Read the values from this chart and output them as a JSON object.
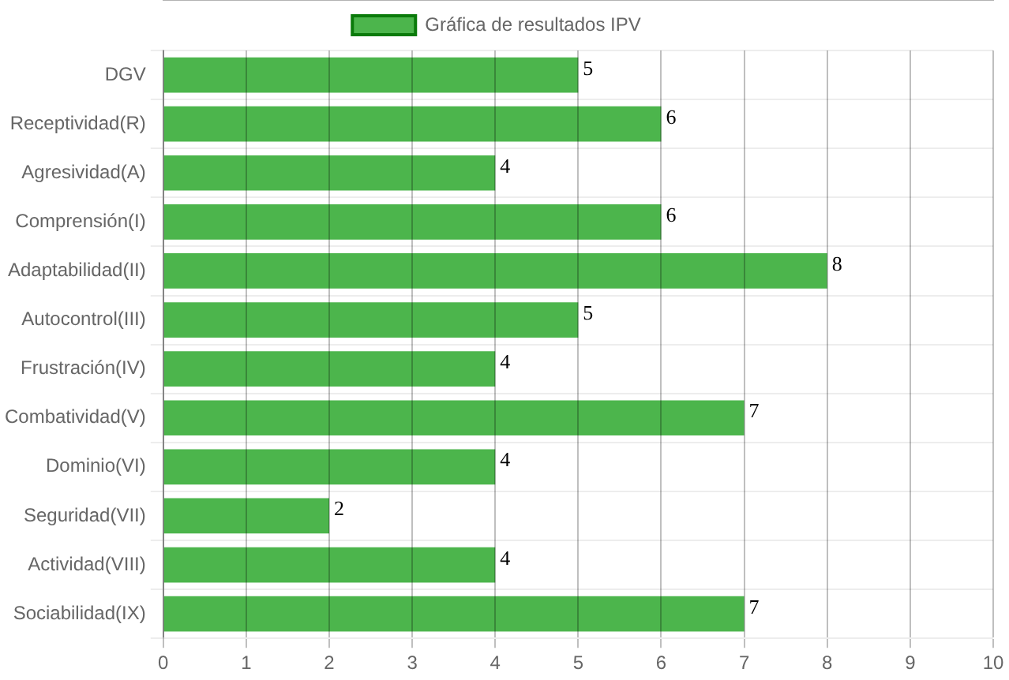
{
  "chart_data": {
    "type": "bar",
    "orientation": "horizontal",
    "categories": [
      "DGV",
      "Receptividad(R)",
      "Agresividad(A)",
      "Comprensión(I)",
      "Adaptabilidad(II)",
      "Autocontrol(III)",
      "Frustración(IV)",
      "Combatividad(V)",
      "Dominio(VI)",
      "Seguridad(VII)",
      "Actividad(VIII)",
      "Sociabilidad(IX)"
    ],
    "series": [
      {
        "name": "Gráfica de resultados IPV",
        "color": "#4cb54c",
        "values": [
          5,
          6,
          4,
          6,
          8,
          5,
          4,
          7,
          4,
          2,
          4,
          7
        ]
      }
    ],
    "xlim": [
      0,
      10
    ],
    "xticks": [
      0,
      1,
      2,
      3,
      4,
      5,
      6,
      7,
      8,
      9,
      10
    ],
    "grid": true,
    "legend": "top",
    "data_labels": true
  }
}
